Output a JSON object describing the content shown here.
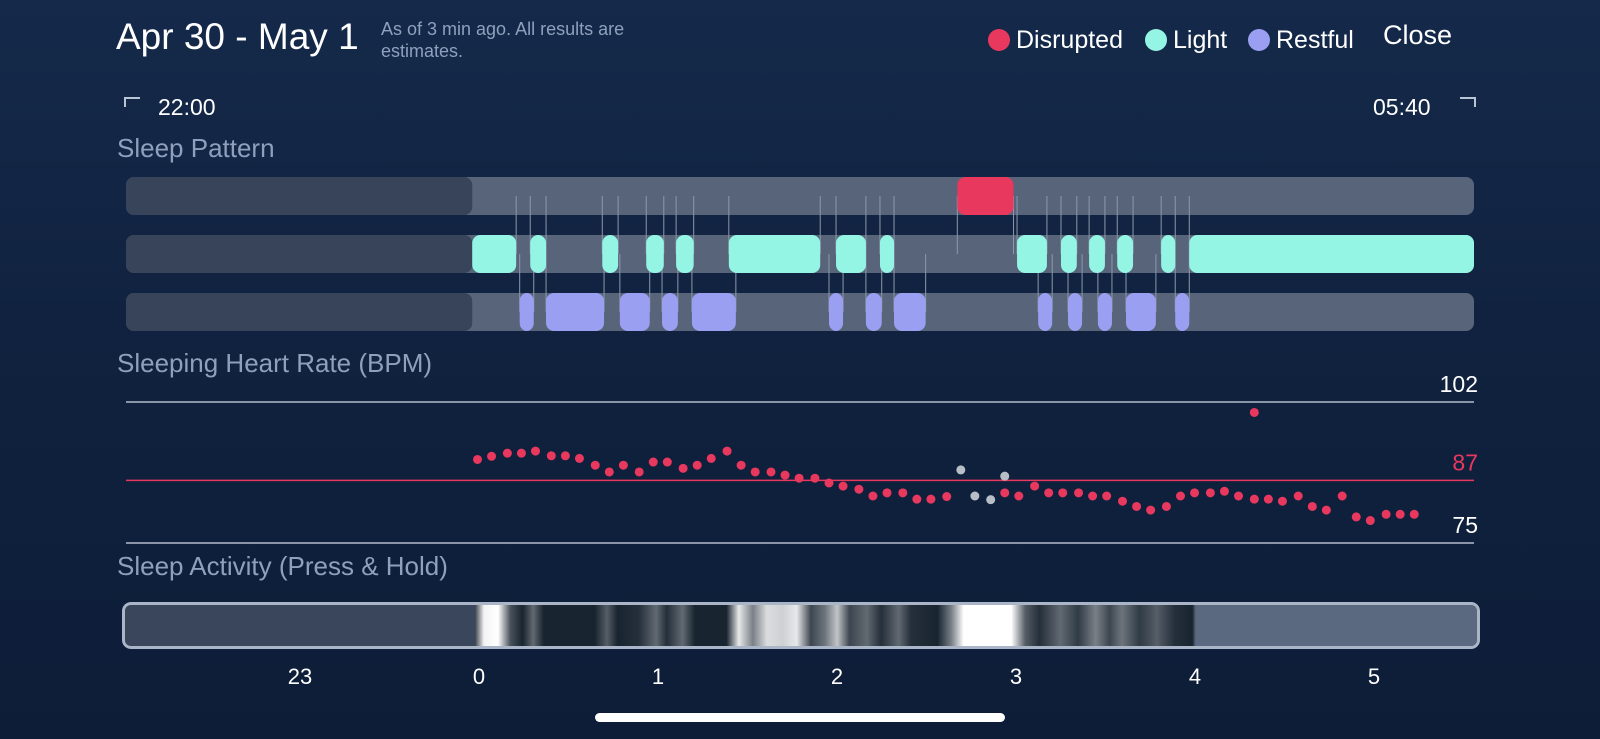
{
  "header": {
    "title": "Apr 30 - May 1",
    "subtitle": "As of 3 min ago. All results are estimates.",
    "close_label": "Close"
  },
  "legend": [
    {
      "label": "Disrupted",
      "color": "#e8385e"
    },
    {
      "label": "Light",
      "color": "#94f5e5"
    },
    {
      "label": "Restful",
      "color": "#9a9ff2"
    }
  ],
  "time_range": {
    "start": "22:00",
    "end": "05:40"
  },
  "sections": {
    "sleep_pattern": "Sleep Pattern",
    "heart_rate": "Sleeping Heart Rate (BPM)",
    "activity": "Sleep Activity (Press & Hold)"
  },
  "x_axis": {
    "ticks": [
      "23",
      "0",
      "1",
      "2",
      "3",
      "4",
      "5"
    ]
  },
  "chart_data": [
    {
      "type": "timeline",
      "x_unit": "hours since 22:00",
      "x_range": [
        0,
        7.67
      ],
      "not_tracked_range": [
        0,
        1.97
      ],
      "rows": [
        {
          "name": "Disrupted",
          "color": "#e8385e",
          "segments": [
            [
              4.73,
              5.05
            ]
          ]
        },
        {
          "name": "Light",
          "color": "#94f5e5",
          "segments": [
            [
              1.97,
              2.22
            ],
            [
              2.3,
              2.39
            ],
            [
              2.71,
              2.8
            ],
            [
              2.96,
              3.06
            ],
            [
              3.13,
              3.23
            ],
            [
              3.43,
              3.95
            ],
            [
              4.04,
              4.21
            ],
            [
              4.29,
              4.37
            ],
            [
              5.07,
              5.24
            ],
            [
              5.32,
              5.41
            ],
            [
              5.48,
              5.57
            ],
            [
              5.64,
              5.73
            ],
            [
              5.89,
              5.97
            ],
            [
              6.05,
              7.67
            ]
          ]
        },
        {
          "name": "Restful",
          "color": "#9a9ff2",
          "segments": [
            [
              2.24,
              2.32
            ],
            [
              2.39,
              2.72
            ],
            [
              2.81,
              2.98
            ],
            [
              3.05,
              3.14
            ],
            [
              3.22,
              3.47
            ],
            [
              4.0,
              4.08
            ],
            [
              4.21,
              4.3
            ],
            [
              4.37,
              4.55
            ],
            [
              5.19,
              5.27
            ],
            [
              5.36,
              5.44
            ],
            [
              5.53,
              5.61
            ],
            [
              5.69,
              5.86
            ],
            [
              5.97,
              6.05
            ]
          ]
        }
      ]
    },
    {
      "type": "scatter",
      "x_unit": "hours since 22:00",
      "y_range": [
        75,
        102
      ],
      "reference_lines": [
        {
          "value": 102,
          "label": "102",
          "color": "#b3bccb"
        },
        {
          "value": 87,
          "label": "87",
          "color": "#e8385e"
        },
        {
          "value": 75,
          "label": "75",
          "color": "#b3bccb"
        }
      ],
      "points": [
        [
          2.0,
          91.0
        ],
        [
          2.08,
          91.6
        ],
        [
          2.17,
          92.2
        ],
        [
          2.25,
          92.2
        ],
        [
          2.33,
          92.6
        ],
        [
          2.42,
          91.7
        ],
        [
          2.5,
          91.7
        ],
        [
          2.58,
          91.2
        ],
        [
          2.67,
          89.9
        ],
        [
          2.75,
          88.6
        ],
        [
          2.83,
          89.9
        ],
        [
          2.92,
          88.6
        ],
        [
          3.0,
          90.5
        ],
        [
          3.08,
          90.5
        ],
        [
          3.17,
          89.3
        ],
        [
          3.25,
          89.9
        ],
        [
          3.33,
          91.2
        ],
        [
          3.42,
          92.6
        ],
        [
          3.5,
          89.9
        ],
        [
          3.58,
          88.6
        ],
        [
          3.67,
          88.6
        ],
        [
          3.75,
          88.0
        ],
        [
          3.83,
          87.4
        ],
        [
          3.92,
          87.4
        ],
        [
          4.0,
          86.5
        ],
        [
          4.08,
          85.9
        ],
        [
          4.17,
          85.3
        ],
        [
          4.25,
          84.0
        ],
        [
          4.33,
          84.6
        ],
        [
          4.42,
          84.6
        ],
        [
          4.5,
          83.4
        ],
        [
          4.58,
          83.4
        ],
        [
          4.67,
          83.9
        ],
        [
          5.0,
          84.6
        ],
        [
          5.08,
          84.0
        ],
        [
          5.17,
          85.9
        ],
        [
          5.25,
          84.6
        ],
        [
          5.33,
          84.6
        ],
        [
          5.42,
          84.6
        ],
        [
          5.5,
          84.0
        ],
        [
          5.58,
          84.0
        ],
        [
          5.67,
          83.0
        ],
        [
          5.75,
          82.0
        ],
        [
          5.83,
          81.3
        ],
        [
          5.92,
          82.0
        ],
        [
          6.0,
          84.0
        ],
        [
          6.08,
          84.6
        ],
        [
          6.17,
          84.6
        ],
        [
          6.25,
          84.9
        ],
        [
          6.33,
          84.0
        ],
        [
          6.42,
          83.4
        ],
        [
          6.5,
          83.4
        ],
        [
          6.58,
          83.0
        ],
        [
          6.67,
          84.0
        ],
        [
          6.75,
          82.0
        ],
        [
          6.83,
          81.3
        ],
        [
          6.92,
          84.0
        ],
        [
          7.0,
          80.0
        ],
        [
          7.08,
          79.3
        ],
        [
          7.17,
          80.5
        ],
        [
          7.25,
          80.5
        ],
        [
          7.33,
          80.5
        ],
        [
          6.42,
          100.0
        ]
      ],
      "excluded_points": [
        [
          4.75,
          89.0
        ],
        [
          4.83,
          84.0
        ],
        [
          4.92,
          83.3
        ],
        [
          5.0,
          87.8
        ]
      ]
    },
    {
      "type": "heatmap",
      "x_unit": "hours since 22:00",
      "not_tracked_range": [
        0,
        1.97
      ],
      "after_range": [
        6.05,
        7.67
      ],
      "intensity_stops": [
        [
          1.97,
          0.2
        ],
        [
          2.02,
          0.95
        ],
        [
          2.1,
          1.0
        ],
        [
          2.17,
          0.25
        ],
        [
          2.24,
          0.05
        ],
        [
          2.3,
          0.35
        ],
        [
          2.36,
          0.05
        ],
        [
          2.65,
          0.05
        ],
        [
          2.72,
          0.3
        ],
        [
          2.78,
          0.05
        ],
        [
          2.9,
          0.1
        ],
        [
          3.0,
          0.35
        ],
        [
          3.06,
          0.1
        ],
        [
          3.15,
          0.35
        ],
        [
          3.22,
          0.05
        ],
        [
          3.4,
          0.05
        ],
        [
          3.47,
          0.9
        ],
        [
          3.55,
          0.45
        ],
        [
          3.63,
          0.85
        ],
        [
          3.72,
          0.8
        ],
        [
          3.8,
          0.9
        ],
        [
          3.88,
          0.2
        ],
        [
          3.96,
          0.4
        ],
        [
          4.03,
          0.75
        ],
        [
          4.1,
          0.2
        ],
        [
          4.2,
          0.35
        ],
        [
          4.28,
          0.1
        ],
        [
          4.38,
          0.35
        ],
        [
          4.45,
          0.1
        ],
        [
          4.6,
          0.05
        ],
        [
          4.68,
          0.45
        ],
        [
          4.75,
          1.0
        ],
        [
          5.02,
          1.0
        ],
        [
          5.1,
          0.3
        ],
        [
          5.18,
          0.1
        ],
        [
          5.3,
          0.35
        ],
        [
          5.4,
          0.15
        ],
        [
          5.5,
          0.45
        ],
        [
          5.58,
          0.2
        ],
        [
          5.65,
          0.4
        ],
        [
          5.75,
          0.15
        ],
        [
          5.85,
          0.3
        ],
        [
          5.95,
          0.1
        ],
        [
          6.05,
          0.05
        ]
      ]
    }
  ]
}
